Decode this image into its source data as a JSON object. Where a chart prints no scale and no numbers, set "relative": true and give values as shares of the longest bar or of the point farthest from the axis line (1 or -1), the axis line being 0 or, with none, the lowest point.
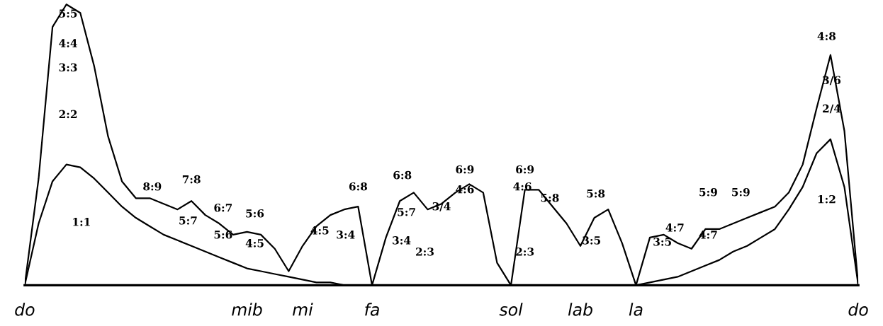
{
  "chart_data": {
    "type": "line",
    "relative": true,
    "categories": [
      "do",
      null,
      null,
      null,
      null,
      null,
      null,
      null,
      null,
      null,
      null,
      null,
      null,
      null,
      null,
      null,
      "mib",
      null,
      null,
      null,
      "mi",
      null,
      null,
      null,
      null,
      "fa",
      null,
      null,
      null,
      null,
      null,
      null,
      null,
      null,
      null,
      "sol",
      null,
      null,
      null,
      null,
      "lab",
      null,
      null,
      null,
      "la",
      null,
      null,
      null,
      null,
      null,
      null,
      null,
      null,
      null,
      null,
      null,
      null,
      null,
      null,
      null,
      "do"
    ],
    "series": [
      {
        "color": "#000000",
        "values": [
          0,
          0.38,
          0.92,
          1.0,
          0.97,
          0.78,
          0.53,
          0.37,
          0.31,
          0.31,
          0.29,
          0.27,
          0.3,
          0.25,
          0.22,
          0.18,
          0.19,
          0.18,
          0.13,
          0.05,
          0.14,
          0.21,
          0.25,
          0.27,
          0.28,
          0,
          0.17,
          0.3,
          0.33,
          0.27,
          0.29,
          0.33,
          0.36,
          0.33,
          0.08,
          0,
          0.34,
          0.34,
          0.28,
          0.22,
          0.14,
          0.24,
          0.27,
          0.15,
          0,
          0.17,
          0.18,
          0.15,
          0.13,
          0.2,
          0.2,
          0.22,
          0.24,
          0.26,
          0.28,
          0.33,
          0.43,
          0.63,
          0.82,
          0.55,
          0
        ]
      },
      {
        "color": "#000000",
        "values": [
          0,
          0.22,
          0.37,
          0.43,
          0.42,
          0.38,
          0.33,
          0.28,
          0.24,
          0.21,
          0.18,
          0.16,
          0.14,
          0.12,
          0.1,
          0.08,
          0.06,
          0.05,
          0.04,
          0.03,
          0.02,
          0.01,
          0.01,
          0,
          0,
          0,
          0,
          0,
          0,
          0,
          0,
          0,
          0,
          0,
          0,
          0,
          0,
          0,
          0,
          0,
          0,
          0,
          0,
          0,
          0,
          0.01,
          0.02,
          0.03,
          0.05,
          0.07,
          0.09,
          0.12,
          0.14,
          0.17,
          0.2,
          0.27,
          0.35,
          0.47,
          0.52,
          0.35,
          0
        ]
      }
    ],
    "annotations": [
      "5:5",
      "4:4",
      "3:3",
      "2:2",
      "1:1",
      "8:9",
      "7:8",
      "5:7",
      "6:7",
      "5:6",
      "5:6",
      "4:5",
      "4:5",
      "3:4",
      "6:8",
      "6:8",
      "5:7",
      "3:4",
      "3/4",
      "6:9",
      "4:6",
      "2:3",
      "6:9",
      "4:6",
      "5:8",
      "2:3",
      "5:8",
      "3:5",
      "3:5",
      "4:7",
      "5:9",
      "4:7",
      "5:9",
      "4:8",
      "3/6",
      "2/4",
      "1:2"
    ]
  }
}
